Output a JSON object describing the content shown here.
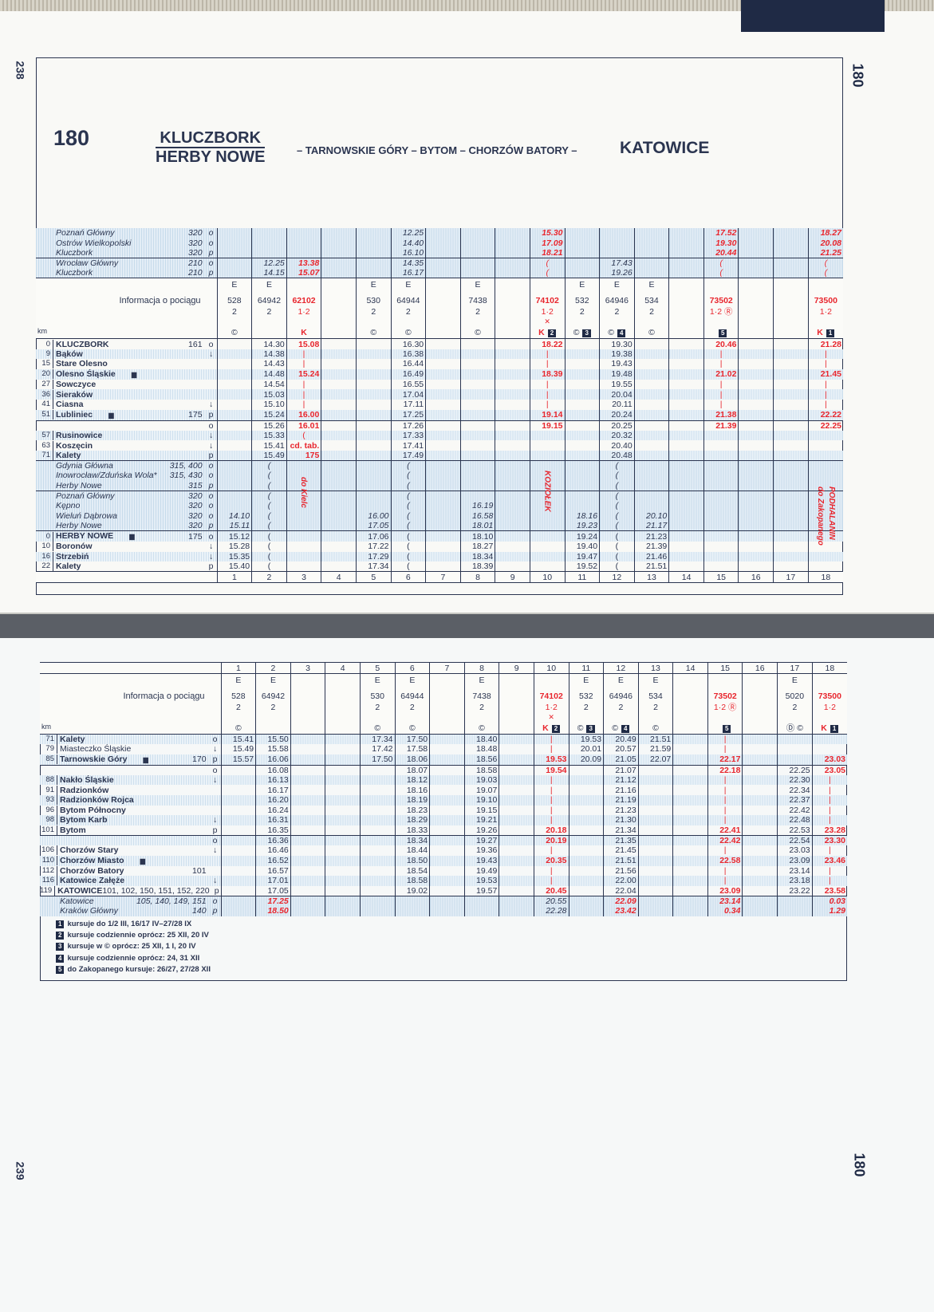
{
  "top_page": {
    "page_number": "238",
    "side_label": "180",
    "title": {
      "number": "180",
      "from_a": "KLUCZBORK",
      "from_b": "HERBY NOWE",
      "via": "– TARNOWSKIE GÓRY – BYTOM – CHORZÓW BATORY –",
      "to": "KATOWICE"
    }
  },
  "bottom_page": {
    "page_number": "239",
    "side_label": "180"
  },
  "colors": {
    "text": "#2b3550",
    "highlight": "#e8262e",
    "shade": "#cfe0ee"
  },
  "info_label": "Informacja o pociągu",
  "km_label": "km",
  "col_numbers": [
    "1",
    "2",
    "3",
    "4",
    "5",
    "6",
    "7",
    "8",
    "9",
    "10",
    "11",
    "12",
    "13",
    "14",
    "15",
    "16",
    "17",
    "18"
  ],
  "top_table": {
    "red_cols": [
      3,
      10,
      15,
      18
    ],
    "trains": [
      {
        "cat": "E",
        "num": "528",
        "cls": "2",
        "sym": "©"
      },
      {
        "cat": "E",
        "num": "64942",
        "cls": "2",
        "sym": ""
      },
      {
        "cat": "",
        "num": "62102",
        "cls": "1·2",
        "sym": "K",
        "red": true
      },
      {
        "cat": "",
        "num": "",
        "cls": "",
        "sym": ""
      },
      {
        "cat": "E",
        "num": "530",
        "cls": "2",
        "sym": "©"
      },
      {
        "cat": "E",
        "num": "64944",
        "cls": "2",
        "sym": "©"
      },
      {
        "cat": "",
        "num": "",
        "cls": "",
        "sym": ""
      },
      {
        "cat": "E",
        "num": "7438",
        "cls": "2",
        "sym": "©"
      },
      {
        "cat": "",
        "num": "",
        "cls": "",
        "sym": ""
      },
      {
        "cat": "",
        "num": "74102",
        "cls": "1·2",
        "extra": "✕",
        "sym": "K",
        "note": "2",
        "red": true
      },
      {
        "cat": "E",
        "num": "532",
        "cls": "2",
        "sym": "©",
        "note": "3"
      },
      {
        "cat": "E",
        "num": "64946",
        "cls": "2",
        "sym": "©",
        "note": "4"
      },
      {
        "cat": "E",
        "num": "534",
        "cls": "2",
        "sym": "©"
      },
      {
        "cat": "",
        "num": "",
        "cls": "",
        "sym": ""
      },
      {
        "cat": "",
        "num": "73502",
        "cls": "1·2 Ⓡ",
        "sym": "",
        "note": "5",
        "red": true
      },
      {
        "cat": "",
        "num": "",
        "cls": "",
        "sym": ""
      },
      {
        "cat": "",
        "num": "",
        "cls": "",
        "sym": ""
      },
      {
        "cat": "",
        "num": "73500",
        "cls": "1·2",
        "sym": "K",
        "note": "1",
        "red": true
      }
    ],
    "conn_before": [
      {
        "name": "Poznań Główny",
        "ref": "320",
        "mark": "o",
        "cells": {
          "6": "12.25",
          "10": "15.30",
          "15": "17.52",
          "18": "18.27"
        }
      },
      {
        "name": "Ostrów Wielkopolski",
        "ref": "320",
        "mark": "o",
        "cells": {
          "6": "14.40",
          "10": "17.09",
          "15": "19.30",
          "18": "20.08"
        }
      },
      {
        "name": "Kluczbork",
        "ref": "320",
        "mark": "p",
        "cells": {
          "6": "16.10",
          "10": "18.21",
          "15": "20.44",
          "18": "21.25"
        }
      },
      {
        "name": "Wrocław Główny",
        "ref": "210",
        "mark": "o",
        "sep": true,
        "cells": {
          "2": "12.25",
          "3": "13.38",
          "6": "14.35",
          "10": "(",
          "12": "17.43",
          "15": "(",
          "18": "("
        }
      },
      {
        "name": "Kluczbork",
        "ref": "210",
        "mark": "p",
        "cells": {
          "2": "14.15",
          "3": "15.07",
          "6": "16.17",
          "10": "(",
          "12": "19.26",
          "15": "(",
          "18": "("
        }
      }
    ],
    "rows": [
      {
        "km": "0",
        "name": "KLUCZBORK",
        "bold": true,
        "ref": "161",
        "mark": "o",
        "cells": {
          "2": "14.30",
          "3": "15.08",
          "6": "16.30",
          "10": "18.22",
          "12": "19.30",
          "15": "20.46",
          "18": "21.28"
        }
      },
      {
        "km": "9",
        "name": "Bąków",
        "bold": true,
        "mark": "↓",
        "shade": true,
        "cells": {
          "2": "14.38",
          "3": "|",
          "6": "16.38",
          "10": "|",
          "12": "19.38",
          "15": "|",
          "18": "|"
        }
      },
      {
        "km": "15",
        "name": "Stare Olesno",
        "bold": true,
        "cells": {
          "2": "14.43",
          "3": "|",
          "6": "16.44",
          "10": "|",
          "12": "19.43",
          "15": "|",
          "18": "|"
        }
      },
      {
        "km": "20",
        "name": "Olesno Śląskie",
        "bold": true,
        "icon": true,
        "shade": true,
        "cells": {
          "2": "14.48",
          "3": "15.24",
          "6": "16.49",
          "10": "18.39",
          "12": "19.48",
          "15": "21.02",
          "18": "21.45"
        }
      },
      {
        "km": "27",
        "name": "Sowczyce",
        "bold": true,
        "cells": {
          "2": "14.54",
          "3": "|",
          "6": "16.55",
          "10": "|",
          "12": "19.55",
          "15": "|",
          "18": "|"
        }
      },
      {
        "km": "36",
        "name": "Sieraków",
        "bold": true,
        "shade": true,
        "cells": {
          "2": "15.03",
          "3": "|",
          "6": "17.04",
          "10": "|",
          "12": "20.04",
          "15": "|",
          "18": "|"
        }
      },
      {
        "km": "41",
        "name": "Ciasna",
        "bold": true,
        "mark": "↓",
        "cells": {
          "2": "15.10",
          "3": "|",
          "6": "17.11",
          "10": "|",
          "12": "20.11",
          "15": "|",
          "18": "|"
        }
      },
      {
        "km": "51",
        "name": "Lubliniec",
        "bold": true,
        "icon": true,
        "ref": "175",
        "mark": "p",
        "shade": true,
        "cells": {
          "2": "15.24",
          "3": "16.00",
          "6": "17.25",
          "10": "19.14",
          "12": "20.24",
          "15": "21.38",
          "18": "22.22"
        }
      },
      {
        "km": "",
        "name": "",
        "mark": "o",
        "sep": true,
        "cells": {
          "2": "15.26",
          "3": "16.01",
          "6": "17.26",
          "10": "19.15",
          "12": "20.25",
          "15": "21.39",
          "18": "22.25"
        }
      },
      {
        "km": "57",
        "name": "Rusinowice",
        "bold": true,
        "mark": "↓",
        "shade": true,
        "cells": {
          "2": "15.33",
          "3": "(",
          "6": "17.33",
          "12": "20.32"
        }
      },
      {
        "km": "63",
        "name": "Koszęcin",
        "bold": true,
        "mark": "↓",
        "cells": {
          "2": "15.41",
          "3": "cd. tab.",
          "6": "17.41",
          "12": "20.40"
        }
      },
      {
        "km": "71",
        "name": "Kalety",
        "bold": true,
        "mark": "p",
        "shade": true,
        "cells": {
          "2": "15.49",
          "3": "175",
          "6": "17.49",
          "12": "20.48"
        }
      }
    ],
    "conn_mid": [
      {
        "name": "Gdynia Główna",
        "ref": "315, 400",
        "mark": "o",
        "sep": true,
        "cells": {
          "2": "(",
          "6": "(",
          "12": "("
        }
      },
      {
        "name": "Inowrocław/Zduńska Wola*",
        "ref": "315, 430",
        "mark": "o",
        "cells": {
          "2": "(",
          "6": "(",
          "12": "("
        }
      },
      {
        "name": "Herby Nowe",
        "ref": "315",
        "mark": "p",
        "cells": {
          "2": "(",
          "6": "(",
          "12": "("
        }
      },
      {
        "name": "Poznań Główny",
        "ref": "320",
        "mark": "o",
        "sep": true,
        "cells": {
          "2": "(",
          "6": "(",
          "12": "("
        }
      },
      {
        "name": "Kępno",
        "ref": "320",
        "mark": "o",
        "cells": {
          "2": "(",
          "6": "(",
          "8": "16.19",
          "12": "("
        }
      },
      {
        "name": "Wieluń Dąbrowa",
        "ref": "320",
        "mark": "o",
        "cells": {
          "1": "14.10",
          "2": "(",
          "5": "16.00",
          "6": "(",
          "8": "16.58",
          "11": "18.16",
          "12": "(",
          "13": "20.10"
        }
      },
      {
        "name": "Herby Nowe",
        "ref": "320",
        "mark": "p",
        "cells": {
          "1": "15.11",
          "2": "(",
          "5": "17.05",
          "6": "(",
          "8": "18.01",
          "11": "19.23",
          "12": "(",
          "13": "21.17"
        }
      }
    ],
    "rows_after": [
      {
        "km": "0",
        "name": "HERBY NOWE",
        "bold": true,
        "icon": true,
        "ref": "175",
        "mark": "o",
        "sep": true,
        "shade": true,
        "cells": {
          "1": "15.12",
          "2": "(",
          "5": "17.06",
          "6": "(",
          "8": "18.10",
          "11": "19.24",
          "12": "(",
          "13": "21.23"
        }
      },
      {
        "km": "10",
        "name": "Boronów",
        "bold": true,
        "mark": "↓",
        "cells": {
          "1": "15.28",
          "2": "(",
          "5": "17.22",
          "6": "(",
          "8": "18.27",
          "11": "19.40",
          "12": "(",
          "13": "21.39"
        }
      },
      {
        "km": "16",
        "name": "Strzebiń",
        "bold": true,
        "mark": "↓",
        "shade": true,
        "cells": {
          "1": "15.35",
          "2": "(",
          "5": "17.29",
          "6": "(",
          "8": "18.34",
          "11": "19.47",
          "12": "(",
          "13": "21.46"
        }
      },
      {
        "km": "22",
        "name": "Kalety",
        "bold": true,
        "mark": "p",
        "cells": {
          "1": "15.40",
          "2": "(",
          "5": "17.34",
          "6": "(",
          "8": "18.39",
          "11": "19.52",
          "12": "(",
          "13": "21.51"
        }
      }
    ],
    "vertical_notes": [
      {
        "col": 3,
        "text": "do Kielc"
      },
      {
        "col": 10,
        "text": "KOZIOŁEK"
      },
      {
        "col": 18,
        "text": "PODHALANIN"
      },
      {
        "col": 18,
        "text": "do Zakopanego"
      }
    ]
  },
  "bottom_table": {
    "red_cols": [
      10,
      15,
      18
    ],
    "trains": [
      {
        "cat": "E",
        "num": "528",
        "cls": "2",
        "sym": "©"
      },
      {
        "cat": "E",
        "num": "64942",
        "cls": "2",
        "sym": ""
      },
      {
        "cat": "",
        "num": "",
        "cls": "",
        "sym": ""
      },
      {
        "cat": "",
        "num": "",
        "cls": "",
        "sym": ""
      },
      {
        "cat": "E",
        "num": "530",
        "cls": "2",
        "sym": "©"
      },
      {
        "cat": "E",
        "num": "64944",
        "cls": "2",
        "sym": "©"
      },
      {
        "cat": "",
        "num": "",
        "cls": "",
        "sym": ""
      },
      {
        "cat": "E",
        "num": "7438",
        "cls": "2",
        "sym": "©"
      },
      {
        "cat": "",
        "num": "",
        "cls": "",
        "sym": ""
      },
      {
        "cat": "",
        "num": "74102",
        "cls": "1·2",
        "extra": "✕",
        "sym": "K",
        "note": "2",
        "red": true
      },
      {
        "cat": "E",
        "num": "532",
        "cls": "2",
        "sym": "©",
        "note": "3"
      },
      {
        "cat": "E",
        "num": "64946",
        "cls": "2",
        "sym": "©",
        "note": "4"
      },
      {
        "cat": "E",
        "num": "534",
        "cls": "2",
        "sym": "©"
      },
      {
        "cat": "",
        "num": "",
        "cls": "",
        "sym": ""
      },
      {
        "cat": "",
        "num": "73502",
        "cls": "1·2 Ⓡ",
        "sym": "",
        "note": "5",
        "red": true
      },
      {
        "cat": "",
        "num": "",
        "cls": "",
        "sym": ""
      },
      {
        "cat": "E",
        "num": "5020",
        "cls": "2",
        "sym": "Ⓓ ©"
      },
      {
        "cat": "",
        "num": "73500",
        "cls": "1·2",
        "sym": "K",
        "note": "1",
        "red": true
      }
    ],
    "rows": [
      {
        "km": "71",
        "name": "Kalety",
        "bold": true,
        "mark": "o",
        "shade": true,
        "cells": {
          "1": "15.41",
          "2": "15.50",
          "5": "17.34",
          "6": "17.50",
          "8": "18.40",
          "10": "|",
          "11": "19.53",
          "12": "20.49",
          "13": "21.51",
          "15": "|"
        }
      },
      {
        "km": "79",
        "name": "Miasteczko Śląskie",
        "mark": "↓",
        "cells": {
          "1": "15.49",
          "2": "15.58",
          "5": "17.42",
          "6": "17.58",
          "8": "18.48",
          "10": "|",
          "11": "20.01",
          "12": "20.57",
          "13": "21.59",
          "15": "|"
        }
      },
      {
        "km": "85",
        "name": "Tarnowskie Góry",
        "bold": true,
        "icon": true,
        "ref": "170",
        "mark": "p",
        "shade": true,
        "cells": {
          "1": "15.57",
          "2": "16.06",
          "5": "17.50",
          "6": "18.06",
          "8": "18.56",
          "10": "19.53",
          "11": "20.09",
          "12": "21.05",
          "13": "22.07",
          "15": "22.17",
          "18": "23.03"
        }
      },
      {
        "km": "",
        "name": "",
        "mark": "o",
        "sep": true,
        "cells": {
          "2": "16.08",
          "6": "18.07",
          "8": "18.58",
          "10": "19.54",
          "12": "21.07",
          "15": "22.18",
          "17": "22.25",
          "18": "23.05"
        }
      },
      {
        "km": "88",
        "name": "Nakło Śląskie",
        "bold": true,
        "mark": "↓",
        "shade": true,
        "cells": {
          "2": "16.13",
          "6": "18.12",
          "8": "19.03",
          "10": "|",
          "12": "21.12",
          "15": "|",
          "17": "22.30",
          "18": "|"
        }
      },
      {
        "km": "91",
        "name": "Radzionków",
        "bold": true,
        "cells": {
          "2": "16.17",
          "6": "18.16",
          "8": "19.07",
          "10": "|",
          "12": "21.16",
          "15": "|",
          "17": "22.34",
          "18": "|"
        }
      },
      {
        "km": "93",
        "name": "Radzionków Rojca",
        "bold": true,
        "shade": true,
        "cells": {
          "2": "16.20",
          "6": "18.19",
          "8": "19.10",
          "10": "|",
          "12": "21.19",
          "15": "|",
          "17": "22.37",
          "18": "|"
        }
      },
      {
        "km": "96",
        "name": "Bytom Północny",
        "bold": true,
        "cells": {
          "2": "16.24",
          "6": "18.23",
          "8": "19.15",
          "10": "|",
          "12": "21.23",
          "15": "|",
          "17": "22.42",
          "18": "|"
        }
      },
      {
        "km": "98",
        "name": "Bytom Karb",
        "bold": true,
        "mark": "↓",
        "shade": true,
        "cells": {
          "2": "16.31",
          "6": "18.29",
          "8": "19.21",
          "10": "|",
          "12": "21.30",
          "15": "|",
          "17": "22.48",
          "18": "|"
        }
      },
      {
        "km": "101",
        "name": "Bytom",
        "bold": true,
        "mark": "p",
        "cells": {
          "2": "16.35",
          "6": "18.33",
          "8": "19.26",
          "10": "20.18",
          "12": "21.34",
          "15": "22.41",
          "17": "22.53",
          "18": "23.28"
        }
      },
      {
        "km": "",
        "name": "",
        "mark": "o",
        "sep": true,
        "shade": true,
        "cells": {
          "2": "16.36",
          "6": "18.34",
          "8": "19.27",
          "10": "20.19",
          "12": "21.35",
          "15": "22.42",
          "17": "22.54",
          "18": "23.30"
        }
      },
      {
        "km": "106",
        "name": "Chorzów Stary",
        "bold": true,
        "mark": "↓",
        "cells": {
          "2": "16.46",
          "6": "18.44",
          "8": "19.36",
          "10": "|",
          "12": "21.45",
          "15": "|",
          "17": "23.03",
          "18": "|"
        }
      },
      {
        "km": "110",
        "name": "Chorzów Miasto",
        "bold": true,
        "icon": true,
        "shade": true,
        "cells": {
          "2": "16.52",
          "6": "18.50",
          "8": "19.43",
          "10": "20.35",
          "12": "21.51",
          "15": "22.58",
          "17": "23.09",
          "18": "23.46"
        }
      },
      {
        "km": "112",
        "name": "Chorzów Batory",
        "bold": true,
        "ref": "101",
        "cells": {
          "2": "16.57",
          "6": "18.54",
          "8": "19.49",
          "10": "|",
          "12": "21.56",
          "15": "|",
          "17": "23.14",
          "18": "|"
        }
      },
      {
        "km": "116",
        "name": "Katowice Załęże",
        "bold": true,
        "mark": "↓",
        "shade": true,
        "cells": {
          "2": "17.01",
          "6": "18.58",
          "8": "19.53",
          "10": "|",
          "12": "22.00",
          "15": "|",
          "17": "23.18",
          "18": "|"
        }
      },
      {
        "km": "119",
        "name": "KATOWICE",
        "bold": true,
        "ref": "101, 102, 150, 151, 152, 220",
        "mark": "p",
        "cells": {
          "2": "17.05",
          "6": "19.02",
          "8": "19.57",
          "10": "20.45",
          "12": "22.04",
          "15": "23.09",
          "17": "23.22",
          "18": "23.58"
        }
      }
    ],
    "conn_after": [
      {
        "name": "Katowice",
        "ref": "105, 140, 149, 151",
        "mark": "o",
        "sep": true,
        "red": [
          2,
          12,
          15,
          18
        ],
        "cells": {
          "2": "17.25",
          "10": "20.55",
          "12": "22.09",
          "15": "23.14",
          "18": "0.03"
        }
      },
      {
        "name": "Kraków Główny",
        "ref": "140",
        "mark": "p",
        "red": [
          2,
          12,
          15,
          18
        ],
        "cells": {
          "2": "18.50",
          "10": "22.28",
          "12": "23.42",
          "15": "0.34",
          "18": "1.29"
        }
      }
    ]
  },
  "footnotes": [
    {
      "badge": "1",
      "text": "kursuje do 1/2 III, 16/17 IV–27/28 IX"
    },
    {
      "badge": "2",
      "text": "kursuje codziennie oprócz: 25 XII, 20 IV"
    },
    {
      "badge": "3",
      "text": "kursuje w © oprócz: 25 XII, 1 I, 20 IV"
    },
    {
      "badge": "4",
      "text": "kursuje codziennie oprócz: 24, 31 XII"
    },
    {
      "badge": "5",
      "text": "do Zakopanego kursuje: 26/27, 27/28 XII"
    }
  ]
}
